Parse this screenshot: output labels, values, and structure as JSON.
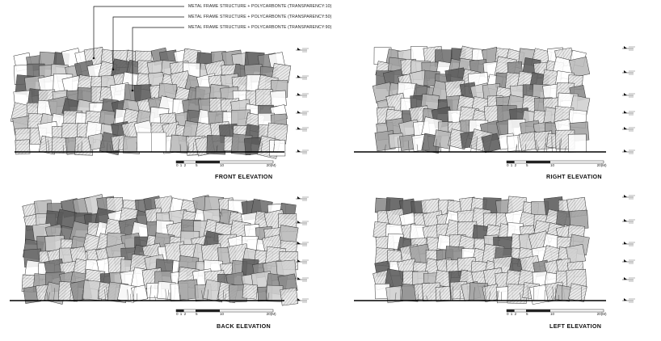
{
  "annotations": [
    "METAL FRAME STRUCTURE + POLYCARBONTE (TRANSPARENCY:10)",
    "METAL FRAME STRUCTURE + POLYCARBONTE (TRANSPARENCY:50)",
    "METAL FRAME STRUCTURE + POLYCARBONTE (TRANSPARENCY:90)"
  ],
  "panels": [
    {
      "id": "front",
      "title": "FRONT ELEVATION"
    },
    {
      "id": "right",
      "title": "RIGHT ELEVATION"
    },
    {
      "id": "back",
      "title": "BACK ELEVATION"
    },
    {
      "id": "left",
      "title": "LEFT ELEVATION"
    }
  ],
  "scale_bar": {
    "labels": [
      "0",
      "1",
      "2",
      "5",
      "10",
      "20(M)"
    ]
  },
  "colors": {
    "frame": "#333333",
    "dark_panel": "#5a5a5a",
    "mid_panel": "#8a8a8a",
    "light_panel": "#cfcfcf",
    "ground": "#000000"
  }
}
